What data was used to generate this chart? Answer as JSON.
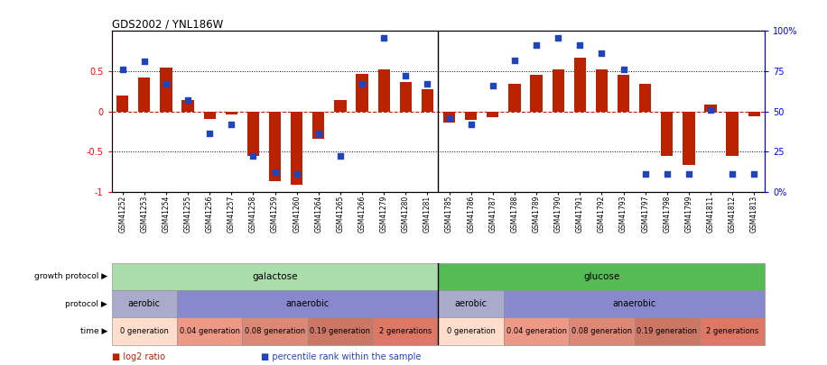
{
  "title": "GDS2002 / YNL186W",
  "samples": [
    "GSM41252",
    "GSM41253",
    "GSM41254",
    "GSM41255",
    "GSM41256",
    "GSM41257",
    "GSM41258",
    "GSM41259",
    "GSM41260",
    "GSM41264",
    "GSM41265",
    "GSM41266",
    "GSM41279",
    "GSM41280",
    "GSM41281",
    "GSM41785",
    "GSM41786",
    "GSM41787",
    "GSM41788",
    "GSM41789",
    "GSM41790",
    "GSM41791",
    "GSM41792",
    "GSM41793",
    "GSM41797",
    "GSM41798",
    "GSM41799",
    "GSM41811",
    "GSM41812",
    "GSM41813"
  ],
  "log2_ratio": [
    0.2,
    0.42,
    0.55,
    0.14,
    -0.1,
    -0.04,
    -0.56,
    -0.87,
    -0.92,
    -0.34,
    0.14,
    0.47,
    0.52,
    0.36,
    0.28,
    -0.14,
    -0.11,
    -0.07,
    0.34,
    0.46,
    0.52,
    0.67,
    0.52,
    0.46,
    0.34,
    -0.56,
    -0.67,
    0.08,
    -0.56,
    -0.06
  ],
  "percentile": [
    76,
    81,
    67,
    57,
    36,
    42,
    22,
    12,
    11,
    36,
    22,
    67,
    96,
    72,
    67,
    46,
    42,
    66,
    82,
    91,
    96,
    91,
    86,
    76,
    11,
    11,
    11,
    51,
    11,
    11
  ],
  "ylim_left": [
    -1,
    1
  ],
  "ylim_right": [
    0,
    100
  ],
  "bar_color": "#bb2200",
  "dot_color": "#2244bb",
  "growth_protocol_blocks": [
    {
      "label": "galactose",
      "start": 0,
      "end": 15,
      "color": "#aaddaa"
    },
    {
      "label": "glucose",
      "start": 15,
      "end": 30,
      "color": "#55bb55"
    }
  ],
  "protocol_blocks": [
    {
      "label": "aerobic",
      "start": 0,
      "end": 3,
      "color": "#aaaacc"
    },
    {
      "label": "anaerobic",
      "start": 3,
      "end": 15,
      "color": "#8888cc"
    },
    {
      "label": "aerobic",
      "start": 15,
      "end": 18,
      "color": "#aaaacc"
    },
    {
      "label": "anaerobic",
      "start": 18,
      "end": 30,
      "color": "#8888cc"
    }
  ],
  "time_blocks": [
    {
      "label": "0 generation",
      "start": 0,
      "end": 3,
      "color": "#ffddcc"
    },
    {
      "label": "0.04 generation",
      "start": 3,
      "end": 6,
      "color": "#ee9988"
    },
    {
      "label": "0.08 generation",
      "start": 6,
      "end": 9,
      "color": "#dd8877"
    },
    {
      "label": "0.19 generation",
      "start": 9,
      "end": 12,
      "color": "#cc7766"
    },
    {
      "label": "2 generations",
      "start": 12,
      "end": 15,
      "color": "#dd7766"
    },
    {
      "label": "0 generation",
      "start": 15,
      "end": 18,
      "color": "#ffddcc"
    },
    {
      "label": "0.04 generation",
      "start": 18,
      "end": 21,
      "color": "#ee9988"
    },
    {
      "label": "0.08 generation",
      "start": 21,
      "end": 24,
      "color": "#dd8877"
    },
    {
      "label": "0.19 generation",
      "start": 24,
      "end": 27,
      "color": "#cc7766"
    },
    {
      "label": "2 generations",
      "start": 27,
      "end": 30,
      "color": "#dd7766"
    }
  ],
  "left_labels": [
    {
      "text": "growth protocol ▶",
      "row": 0
    },
    {
      "text": "protocol ▶",
      "row": 1
    },
    {
      "text": "time ▶",
      "row": 2
    }
  ],
  "legend_items": [
    {
      "color": "#bb2200",
      "label": "log2 ratio"
    },
    {
      "color": "#2244bb",
      "label": "percentile rank within the sample"
    }
  ],
  "left_yticks": [
    -1,
    -0.5,
    0,
    0.5
  ],
  "right_yticks": [
    0,
    25,
    50,
    75,
    100
  ],
  "hlines": [
    0.5,
    -0.5
  ],
  "zero_line": 0.0,
  "n_samples": 30,
  "sep_after": 14
}
